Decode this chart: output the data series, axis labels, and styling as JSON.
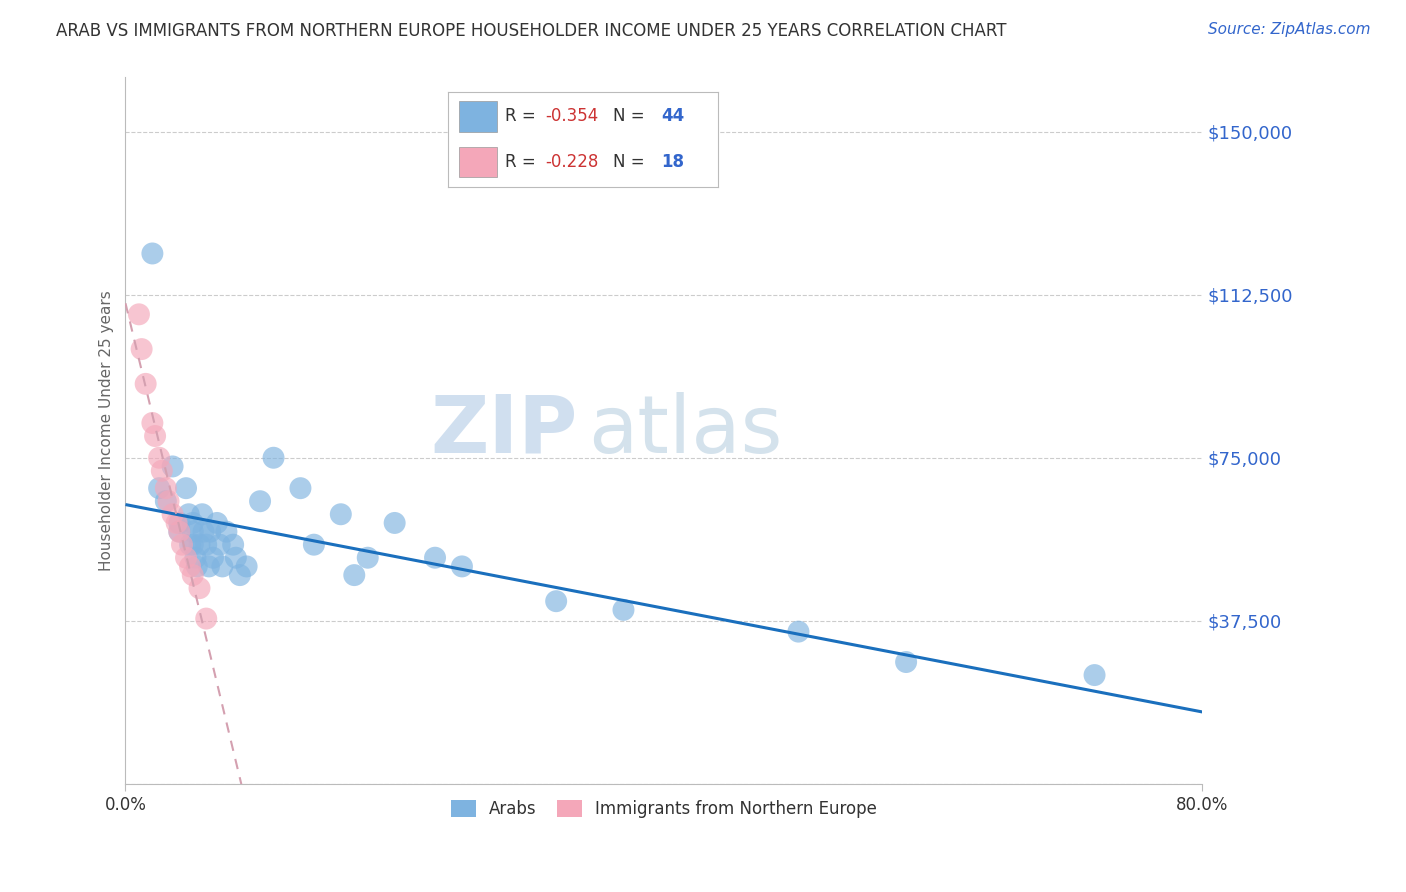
{
  "title": "ARAB VS IMMIGRANTS FROM NORTHERN EUROPE HOUSEHOLDER INCOME UNDER 25 YEARS CORRELATION CHART",
  "source": "Source: ZipAtlas.com",
  "ylabel": "Householder Income Under 25 years",
  "xlim": [
    0.0,
    0.8
  ],
  "ylim": [
    0,
    162500
  ],
  "yticks": [
    0,
    37500,
    75000,
    112500,
    150000
  ],
  "ytick_labels": [
    "",
    "$37,500",
    "$75,000",
    "$112,500",
    "$150,000"
  ],
  "xticks": [
    0.0,
    0.8
  ],
  "xtick_labels": [
    "0.0%",
    "80.0%"
  ],
  "legend1_label": "Arabs",
  "legend2_label": "Immigrants from Northern Europe",
  "r1": -0.354,
  "n1": 44,
  "r2": -0.228,
  "n2": 18,
  "blue_color": "#7eb3e0",
  "pink_color": "#f4a7b9",
  "line1_color": "#1a6fbd",
  "line2_color": "#d4a0b0",
  "watermark_zip": "ZIP",
  "watermark_atlas": "atlas",
  "title_color": "#333333",
  "axis_label_color": "#666666",
  "ytick_color": "#3366cc",
  "source_color": "#3366cc",
  "legend_r_color": "#cc3333",
  "legend_n_color": "#3366cc",
  "arab_x": [
    0.02,
    0.025,
    0.03,
    0.035,
    0.04,
    0.04,
    0.045,
    0.047,
    0.048,
    0.05,
    0.05,
    0.05,
    0.052,
    0.053,
    0.055,
    0.057,
    0.058,
    0.06,
    0.062,
    0.063,
    0.065,
    0.068,
    0.07,
    0.072,
    0.075,
    0.08,
    0.082,
    0.085,
    0.09,
    0.1,
    0.11,
    0.13,
    0.14,
    0.16,
    0.17,
    0.18,
    0.2,
    0.23,
    0.25,
    0.32,
    0.37,
    0.5,
    0.58,
    0.72
  ],
  "arab_y": [
    122000,
    68000,
    65000,
    73000,
    60000,
    58000,
    68000,
    62000,
    55000,
    60000,
    58000,
    55000,
    52000,
    50000,
    55000,
    62000,
    58000,
    55000,
    50000,
    58000,
    52000,
    60000,
    55000,
    50000,
    58000,
    55000,
    52000,
    48000,
    50000,
    65000,
    75000,
    68000,
    55000,
    62000,
    48000,
    52000,
    60000,
    52000,
    50000,
    42000,
    40000,
    35000,
    28000,
    25000
  ],
  "northern_x": [
    0.01,
    0.012,
    0.015,
    0.02,
    0.022,
    0.025,
    0.027,
    0.03,
    0.032,
    0.035,
    0.038,
    0.04,
    0.042,
    0.045,
    0.048,
    0.05,
    0.055,
    0.06
  ],
  "northern_y": [
    108000,
    100000,
    92000,
    83000,
    80000,
    75000,
    72000,
    68000,
    65000,
    62000,
    60000,
    58000,
    55000,
    52000,
    50000,
    48000,
    45000,
    38000
  ],
  "background_color": "#ffffff",
  "grid_color": "#cccccc",
  "fig_width": 14.06,
  "fig_height": 8.92
}
